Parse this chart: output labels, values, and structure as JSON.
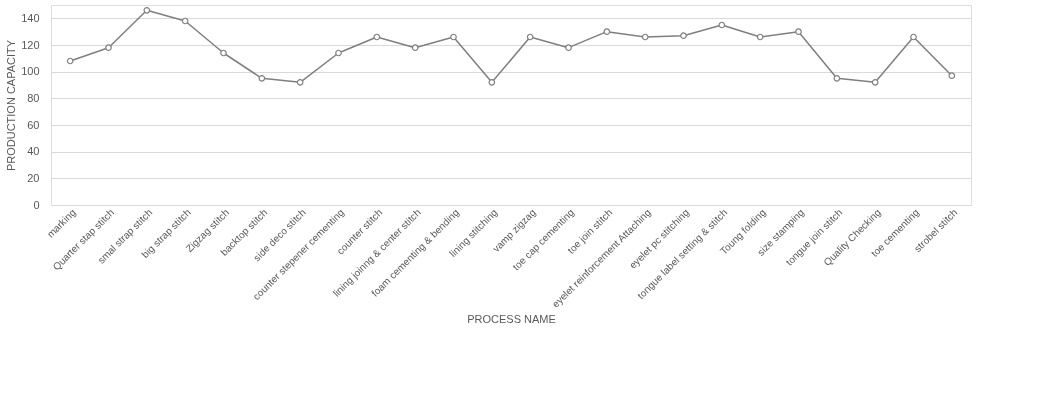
{
  "chart_data": {
    "type": "line",
    "xlabel": "PROCESS NAME",
    "ylabel": "PRODUCTION CAPACITY",
    "categories": [
      "marking",
      "Quarter stap stitch",
      "smal strap stitch",
      "big strap stitch",
      "Zigzag stitch",
      "backtop stitch",
      "side deco stitch",
      "counter stepener cementing",
      "counter stitch",
      "lining joinng & center stitch",
      "foam cementing & bending",
      "lining stitching",
      "vamp zigzag",
      "toe cap cementing",
      "toe join stitch",
      "eyelet reinforcement Attaching",
      "eyelet pc stitching",
      "tongue label setting & stitch",
      "Toung folding",
      "size stamping",
      "tongue join stitch",
      "Quality Checking",
      "toe cementing",
      "strobel stitch"
    ],
    "series": [
      {
        "color": "#7f7f7f",
        "values": [
          108,
          118,
          146,
          138,
          114,
          95,
          92,
          114,
          126,
          118,
          126,
          92,
          126,
          118,
          130,
          126,
          127,
          135,
          126,
          130,
          95,
          92,
          126,
          97
        ]
      }
    ],
    "ylim": [
      0,
      150
    ],
    "yticks": [
      0,
      20,
      40,
      60,
      80,
      100,
      120,
      140
    ],
    "grid": "y",
    "marker": "circle",
    "line_style": "solid"
  }
}
